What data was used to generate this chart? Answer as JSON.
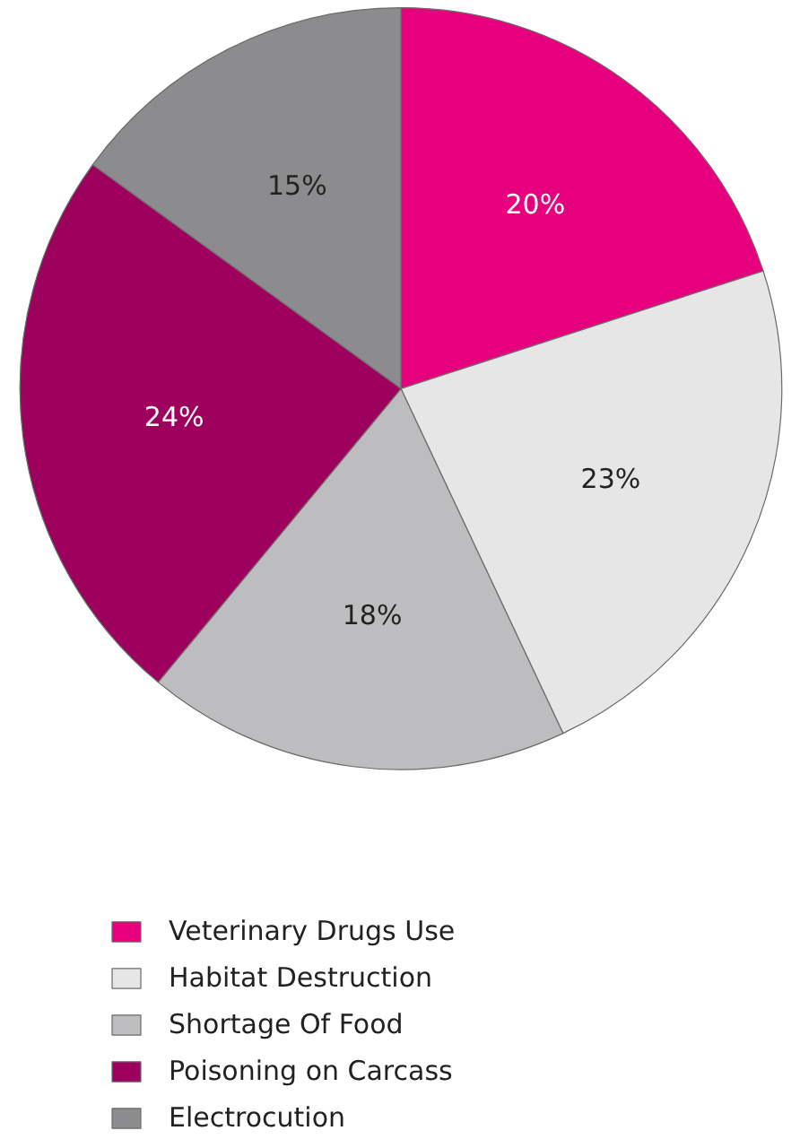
{
  "chart_data": {
    "type": "pie",
    "categories": [
      "Veterinary Drugs Use",
      "Habitat Destruction",
      "Shortage Of Food",
      "Poisoning on Carcass",
      "Electrocution"
    ],
    "values": [
      20,
      23,
      18,
      24,
      15
    ],
    "colors": [
      "#e6007e",
      "#e6e6e6",
      "#bdbdc0",
      "#9e005d",
      "#8c8c8f"
    ],
    "value_labels": [
      "20%",
      "23%",
      "18%",
      "24%",
      "15%"
    ],
    "legend": "bottom"
  }
}
